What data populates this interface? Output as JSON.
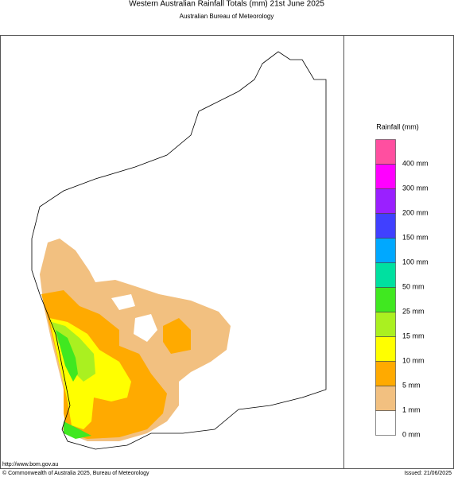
{
  "header": {
    "title": "Western Australian Rainfall Totals (mm) 21st June 2025",
    "subtitle": "Australian Bureau of Meteorology"
  },
  "legend": {
    "title": "Rainfall (mm)",
    "colors": [
      "#ffffff",
      "#f2c080",
      "#ffaa00",
      "#ffff00",
      "#aaf020",
      "#40e820",
      "#00e0a0",
      "#00a8ff",
      "#4040ff",
      "#9a20ff",
      "#ff00ff",
      "#ff4fa0"
    ],
    "labels": [
      "0 mm",
      "1 mm",
      "5 mm",
      "10 mm",
      "15 mm",
      "25 mm",
      "50 mm",
      "100 mm",
      "150 mm",
      "200 mm",
      "300 mm",
      "400 mm"
    ]
  },
  "footer": {
    "url": "http://www.bom.gov.au",
    "copyright": "© Commonwealth of Australia 2025, Bureau of Meteorology",
    "issued": "Issued: 21/06/2025"
  }
}
